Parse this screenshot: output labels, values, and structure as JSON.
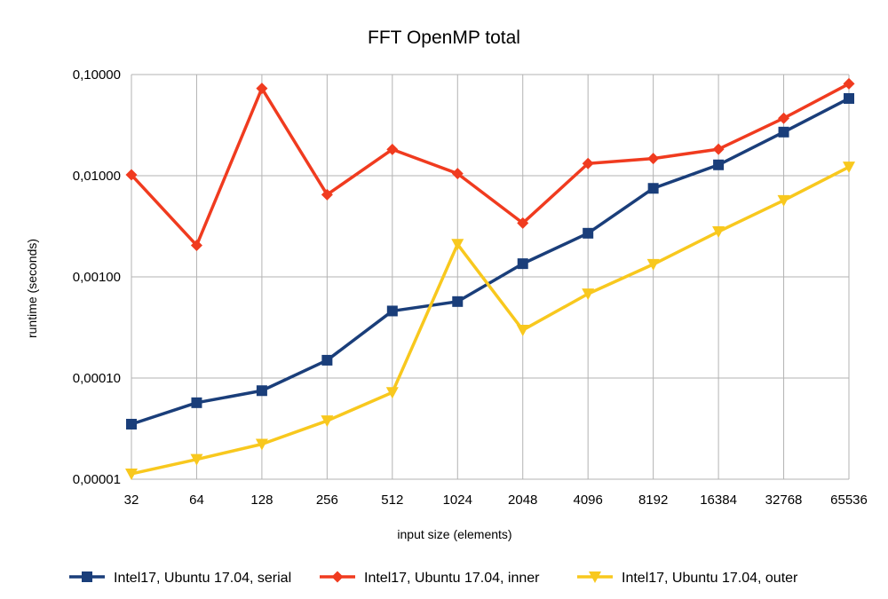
{
  "chart_data": {
    "type": "line",
    "title": "FFT OpenMP total",
    "xlabel": "input size (elements)",
    "ylabel": "runtime (seconds)",
    "y_scale": "log",
    "ylim": [
      1e-05,
      0.1
    ],
    "y_ticks": [
      "0,00001",
      "0,00010",
      "0,00100",
      "0,01000",
      "0,10000"
    ],
    "categories": [
      "32",
      "64",
      "128",
      "256",
      "512",
      "1024",
      "2048",
      "4096",
      "8192",
      "16384",
      "32768",
      "65536"
    ],
    "grid": true,
    "legend_position": "bottom",
    "series": [
      {
        "name": "Intel17, Ubuntu 17.04, serial",
        "color": "#1a3e7a",
        "marker": "square",
        "values": [
          3.5e-05,
          5.7e-05,
          7.5e-05,
          0.00015,
          0.00046,
          0.00057,
          0.00135,
          0.0027,
          0.0075,
          0.0128,
          0.027,
          0.058
        ]
      },
      {
        "name": "Intel17, Ubuntu 17.04, inner",
        "color": "#f03b1f",
        "marker": "diamond",
        "values": [
          0.0102,
          0.00205,
          0.073,
          0.0065,
          0.0182,
          0.0105,
          0.0034,
          0.0132,
          0.0148,
          0.0183,
          0.037,
          0.081
        ]
      },
      {
        "name": "Intel17, Ubuntu 17.04, outer",
        "color": "#f8c81e",
        "marker": "triangle-down",
        "values": [
          1.13e-05,
          1.57e-05,
          2.22e-05,
          3.78e-05,
          7.2e-05,
          0.0021,
          0.000298,
          0.00068,
          0.00133,
          0.0028,
          0.0057,
          0.0122
        ]
      }
    ]
  }
}
